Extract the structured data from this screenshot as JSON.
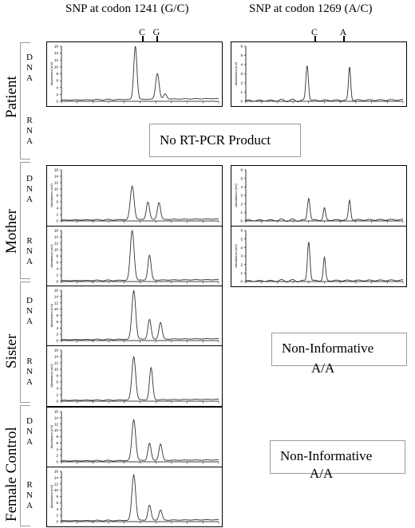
{
  "headers": {
    "left_title": "SNP at codon 1241 (G/C)",
    "right_title": "SNP at codon 1269 (A/C)",
    "left_markers": [
      "C",
      "G"
    ],
    "right_markers": [
      "C",
      "A"
    ]
  },
  "subjects": {
    "patient": "Patient",
    "mother": "Mother",
    "sister": "Sister",
    "female_control": "Female Control"
  },
  "row_labels": {
    "dna": [
      "D",
      "N",
      "A"
    ],
    "rna": [
      "R",
      "N",
      "A"
    ]
  },
  "notices": {
    "no_product": "No RT-PCR Product",
    "sister_line1": "Non-Informative",
    "sister_line2": "A/A",
    "control_line1": "Non-Informative",
    "control_line2": "A/A"
  },
  "chart_data": [
    {
      "type": "line",
      "title": "",
      "subject": "Patient",
      "sample": "DNA",
      "snp": "codon 1241 (G/C)",
      "ylabel": "Absorbance (mV)",
      "ylim": [
        0,
        16
      ],
      "yticks": [
        0,
        2,
        4,
        6,
        8,
        10,
        12,
        14,
        16
      ],
      "peaks": [
        {
          "x": 0.47,
          "height": 15.5,
          "width": 0.01
        },
        {
          "x": 0.61,
          "height": 7.5,
          "width": 0.011
        },
        {
          "x": 0.66,
          "height": 1.5,
          "width": 0.01
        }
      ],
      "baseline": 0.8
    },
    {
      "type": "line",
      "title": "",
      "subject": "Patient",
      "sample": "DNA",
      "snp": "codon 1269 (A/C)",
      "ylabel": "Absorbance (mV)",
      "ylim": [
        0,
        6
      ],
      "yticks": [
        0,
        1,
        2,
        3,
        4,
        5,
        6
      ],
      "peaks": [
        {
          "x": 0.39,
          "height": 3.8,
          "width": 0.008
        },
        {
          "x": 0.66,
          "height": 3.6,
          "width": 0.007
        }
      ],
      "baseline": 0.15
    },
    {
      "type": "line",
      "title": "",
      "subject": "Mother",
      "sample": "DNA",
      "snp": "codon 1241 (G/C)",
      "ylabel": "Absorbance (mV)",
      "ylim": [
        0,
        16
      ],
      "yticks": [
        0,
        2,
        4,
        6,
        8,
        10,
        12,
        14,
        16
      ],
      "peaks": [
        {
          "x": 0.45,
          "height": 10.5,
          "width": 0.012
        },
        {
          "x": 0.55,
          "height": 5.5,
          "width": 0.01
        },
        {
          "x": 0.62,
          "height": 5.3,
          "width": 0.01
        }
      ],
      "baseline": 0.6
    },
    {
      "type": "line",
      "title": "",
      "subject": "Mother",
      "sample": "DNA",
      "snp": "codon 1269 (A/C)",
      "ylabel": "Absorbance (mV)",
      "ylim": [
        0,
        6
      ],
      "yticks": [
        0,
        1,
        2,
        3,
        4,
        5,
        6
      ],
      "peaks": [
        {
          "x": 0.4,
          "height": 2.6,
          "width": 0.008
        },
        {
          "x": 0.5,
          "height": 1.4,
          "width": 0.007
        },
        {
          "x": 0.66,
          "height": 2.3,
          "width": 0.007
        }
      ],
      "baseline": 0.15
    },
    {
      "type": "line",
      "title": "",
      "subject": "Mother",
      "sample": "RNA",
      "snp": "codon 1241 (G/C)",
      "ylabel": "Absorbance (mV)",
      "ylim": [
        0,
        16
      ],
      "yticks": [
        0,
        2,
        4,
        6,
        8,
        10,
        12,
        14,
        16
      ],
      "peaks": [
        {
          "x": 0.45,
          "height": 15.5,
          "width": 0.012
        },
        {
          "x": 0.56,
          "height": 7.8,
          "width": 0.01
        }
      ],
      "baseline": 0.6
    },
    {
      "type": "line",
      "title": "",
      "subject": "Mother",
      "sample": "RNA",
      "snp": "codon 1269 (A/C)",
      "ylabel": "Absorbance (mV)",
      "ylim": [
        0,
        6
      ],
      "yticks": [
        0,
        1,
        2,
        3,
        4,
        5,
        6
      ],
      "peaks": [
        {
          "x": 0.4,
          "height": 4.6,
          "width": 0.008
        },
        {
          "x": 0.5,
          "height": 2.7,
          "width": 0.007
        }
      ],
      "baseline": 0.15
    },
    {
      "type": "line",
      "title": "",
      "subject": "Sister",
      "sample": "DNA",
      "snp": "codon 1241 (G/C)",
      "ylabel": "Absorbance (mV)",
      "ylim": [
        0,
        16
      ],
      "yticks": [
        0,
        2,
        4,
        6,
        8,
        10,
        12,
        14,
        16
      ],
      "peaks": [
        {
          "x": 0.46,
          "height": 15.5,
          "width": 0.012
        },
        {
          "x": 0.56,
          "height": 6.3,
          "width": 0.01
        },
        {
          "x": 0.63,
          "height": 5.3,
          "width": 0.01
        }
      ],
      "baseline": 0.6
    },
    {
      "type": "line",
      "title": "",
      "subject": "Sister",
      "sample": "RNA",
      "snp": "codon 1241 (G/C)",
      "ylabel": "Absorbance (mV)",
      "ylim": [
        0,
        16
      ],
      "yticks": [
        0,
        2,
        4,
        6,
        8,
        10,
        12,
        14,
        16
      ],
      "peaks": [
        {
          "x": 0.46,
          "height": 13.5,
          "width": 0.012
        },
        {
          "x": 0.57,
          "height": 10.0,
          "width": 0.01
        }
      ],
      "baseline": 0.6
    },
    {
      "type": "line",
      "title": "",
      "subject": "Female Control",
      "sample": "DNA",
      "snp": "codon 1241 (G/C)",
      "ylabel": "Absorbance (mV)",
      "ylim": [
        0,
        16
      ],
      "yticks": [
        0,
        2,
        4,
        6,
        8,
        10,
        12,
        14,
        16
      ],
      "peaks": [
        {
          "x": 0.46,
          "height": 13.0,
          "width": 0.012
        },
        {
          "x": 0.56,
          "height": 5.5,
          "width": 0.01
        },
        {
          "x": 0.63,
          "height": 5.2,
          "width": 0.01
        }
      ],
      "baseline": 0.6
    },
    {
      "type": "line",
      "title": "",
      "subject": "Female Control",
      "sample": "RNA",
      "snp": "codon 1241 (G/C)",
      "ylabel": "Absorbance (mV)",
      "ylim": [
        0,
        16
      ],
      "yticks": [
        0,
        2,
        4,
        6,
        8,
        10,
        12,
        14,
        16
      ],
      "peaks": [
        {
          "x": 0.46,
          "height": 14.5,
          "width": 0.012
        },
        {
          "x": 0.56,
          "height": 4.8,
          "width": 0.01
        },
        {
          "x": 0.63,
          "height": 3.2,
          "width": 0.01
        }
      ],
      "baseline": 0.6
    }
  ]
}
